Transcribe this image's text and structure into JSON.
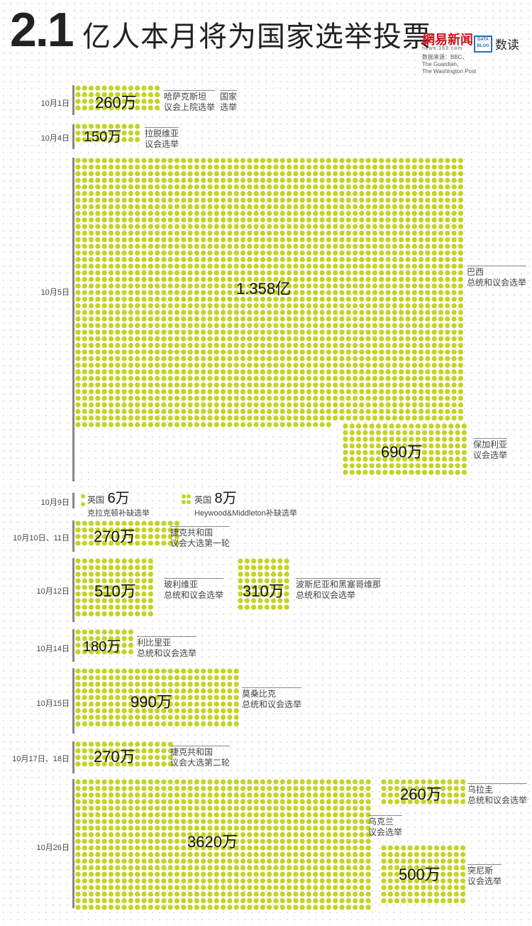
{
  "header": {
    "title_big": "2.1",
    "title_rest": "亿人本月将为国家选举投票",
    "logo_netease": "網易新闻",
    "logo_netease_sub": "news.163.com",
    "logo_datablog": "DATA BLOG",
    "logo_shudu": "数读",
    "source_lines": [
      "数据来源：BBC、",
      "The Guardian、",
      "The Washington Post"
    ]
  },
  "colors": {
    "dot": "#c3d423",
    "axis": "#888888",
    "title": "#222222"
  },
  "chart_data": {
    "type": "dot-matrix",
    "unit_per_dot": "10万",
    "dates": [
      "10月1日",
      "10月4日",
      "10月5日",
      "10月9日",
      "10月10日、11日",
      "10月12日",
      "10月14日",
      "10月15日",
      "10月17日、18日",
      "10月26日"
    ],
    "elections": [
      {
        "date": "10月1日",
        "value": "260万",
        "label": [
          "哈萨克斯坦",
          "议会上院选举"
        ],
        "label2": [
          "国家",
          "选举"
        ]
      },
      {
        "date": "10月4日",
        "value": "150万",
        "label": [
          "拉脱维亚",
          "议会选举"
        ]
      },
      {
        "date": "10月5日",
        "value": "1.358亿",
        "label": [
          "巴西",
          "总统和议会选举"
        ]
      },
      {
        "date": "10月5日",
        "value": "690万",
        "label": [
          "保加利亚",
          "议会选举"
        ]
      },
      {
        "date": "10月9日",
        "value": "6万",
        "label": [
          "英国",
          "克拉克顿补缺选举"
        ]
      },
      {
        "date": "10月9日",
        "value": "8万",
        "label": [
          "英国",
          "Heywood&Middleton补缺选举"
        ]
      },
      {
        "date": "10月10日、11日",
        "value": "270万",
        "label": [
          "捷克共和国",
          "议会大选第一轮"
        ]
      },
      {
        "date": "10月12日",
        "value": "510万",
        "label": [
          "玻利维亚",
          "总统和议会选举"
        ]
      },
      {
        "date": "10月12日",
        "value": "310万",
        "label": [
          "波斯尼亚和黑塞哥维那",
          "总统和议会选举"
        ]
      },
      {
        "date": "10月14日",
        "value": "180万",
        "label": [
          "利比里亚",
          "总统和议会选举"
        ]
      },
      {
        "date": "10月15日",
        "value": "990万",
        "label": [
          "莫桑比克",
          "总统和议会选举"
        ]
      },
      {
        "date": "10月17日、18日",
        "value": "270万",
        "label": [
          "捷克共和国",
          "议会大选第二轮"
        ]
      },
      {
        "date": "10月26日",
        "value": "3620万",
        "label": [
          "乌克兰",
          "议会选举"
        ]
      },
      {
        "date": "10月26日",
        "value": "260万",
        "label": [
          "乌拉圭",
          "总统和议会选举"
        ]
      },
      {
        "date": "10月26日",
        "value": "500万",
        "label": [
          "突尼斯",
          "议会选举"
        ]
      }
    ]
  }
}
